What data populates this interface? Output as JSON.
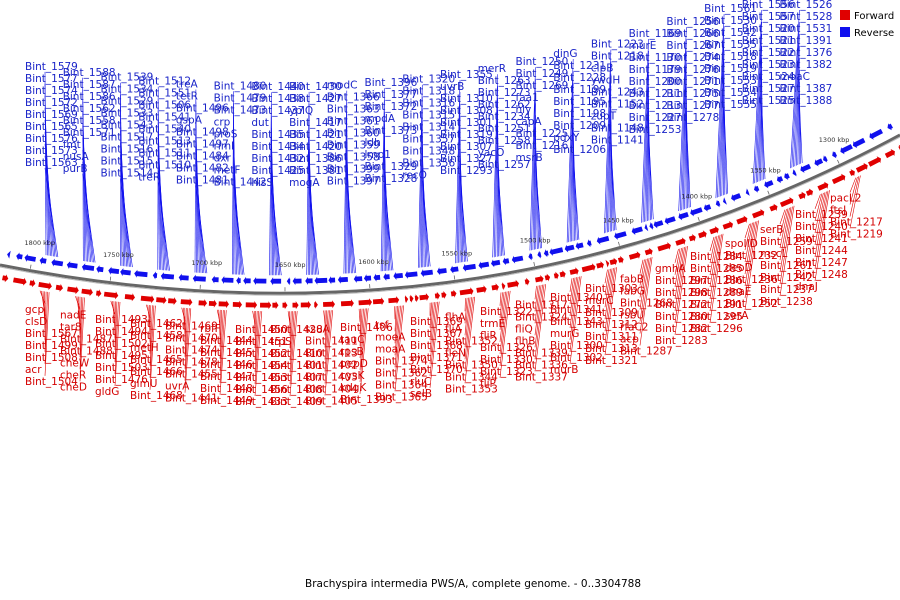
{
  "caption": "Brachyspira intermedia PWS/A, complete genome. - 0..3304788",
  "legend": [
    {
      "label": "Forward",
      "color": "#e00000"
    },
    {
      "label": "Reverse",
      "color": "#1010ee"
    }
  ],
  "ticks": [
    "1800 kbp",
    "1750 kbp",
    "1700 kbp",
    "1650 kbp",
    "1600 kbp",
    "1550 kbp",
    "1500 kbp",
    "1450 kbp",
    "1400 kbp",
    "1350 kbp",
    "1300 kbp"
  ],
  "reverse_labels": [
    "Bint_1579",
    "Bint_1577",
    "Bint_1574",
    "Bint_1572",
    "Bint_1569",
    "Bint_1565",
    "Bint_1576",
    "Bint_1573",
    "Bint_1563",
    "Bint_1588",
    "Bint_1587",
    "Bint_1586",
    "Bint_1562",
    "Bint_1558",
    "Bint_1571",
    "fmt",
    "nusA",
    "purB",
    "Bint_1539",
    "Bint_1534",
    "Bint_1529",
    "Bint_1533",
    "Bint_1543",
    "Bint_1517",
    "Bint_1516",
    "Bint_1515",
    "Bint_1514",
    "Bint_1512",
    "Bint_1551",
    "Bint_1506",
    "Bint_1541",
    "Bint_1540",
    "Bint_1513",
    "Bint_1511",
    "Bint_1510",
    "treR",
    "treA",
    "tetR",
    "Bint_1496",
    "gspA",
    "Bint_1498",
    "Bint_1497",
    "Bint_1484",
    "Bint_1482",
    "Bint_1481",
    "Bint_1480",
    "Bint_1479",
    "Bint_1473",
    "crp",
    "proS",
    "rimI",
    "dxr",
    "metF",
    "Bint_1442",
    "Bint_1440",
    "Bint_1438",
    "Bint_1437",
    "dut",
    "Bint_1435",
    "Bint_1434",
    "Bint_1432",
    "Bint_1425",
    "hisS",
    "Bint_1430",
    "Bint_1427",
    "yplQ",
    "Bint_1417",
    "Bint_1421",
    "Bint_1420",
    "Bint_1386",
    "Bint_1381",
    "mogA",
    "modC",
    "Bint_1366",
    "Bint_1363",
    "Bint_1361",
    "Bint_1360",
    "Bint_1359",
    "Bint_1358",
    "Bint_1399",
    "Bint_1397",
    "Bint_1396",
    "Bint_1377",
    "Bint_1372",
    "modA",
    "Bint_1373",
    "ldh",
    "lmp1",
    "Bint_1329",
    "Bint_1328",
    "Bint_1320",
    "Bint_1318",
    "Bint_1316",
    "Bint_1315",
    "Bint_1314",
    "Bint_1357",
    "Bint_1348",
    "Bint_1356",
    "recO",
    "Bint_1355",
    "uvrB",
    "Bint_1310",
    "Bint_1308",
    "Bint_1301",
    "Bint_1319",
    "Bint_1307",
    "Bint_1327",
    "Bint_1293",
    "merR",
    "Bint_1263",
    "Bint_1273",
    "Bint_1262",
    "Bint_1234",
    "Bint_1251",
    "Bint_1258",
    "yacO",
    "Bint_1257",
    "Bint_1250",
    "Bint_1249",
    "Bint_1269",
    "faa1",
    "hly",
    "capA",
    "Bint_1225",
    "Bint_1216",
    "msrB",
    "dinG",
    "Bint_1231",
    "Bint_1228",
    "Bint_1199",
    "Bint_1195",
    "Bint_1198",
    "Bint_1209",
    "pdxY",
    "Bint_1206",
    "Bint_1223",
    "Bint_1218",
    "clpB",
    "ywdH",
    "Bint_1243",
    "Bint_1152",
    "zupT",
    "Bint_1148",
    "Bint_1141",
    "Bint_1169",
    "murE",
    "Bint_1170",
    "Bint_1179",
    "Bint_1200",
    "Bint_1211",
    "Bint_1213",
    "Bint_1227",
    "Bint_1253",
    "Bint_1256",
    "Bint_1266",
    "Bint_1267",
    "Bint_1274",
    "Bint_1276",
    "Bint_1271",
    "Bint_1275",
    "Bint_1277",
    "Bint_1278",
    "Bint_1561",
    "Bint_1530",
    "Bint_1542",
    "Bint_1535",
    "Bint_1518",
    "Bint_1519",
    "Bint_1553",
    "Bint_1554",
    "Bint_1555",
    "Bint_1556",
    "Bint_1557",
    "Bint_1520",
    "Bint_1521",
    "Bint_1522",
    "Bint_1523",
    "Bint_1524",
    "Bint_1527",
    "Bint_1525",
    "Bint_1526",
    "Bint_1528",
    "Bint_1531",
    "Bint_1391",
    "Bint_1376",
    "Bint_1382",
    "moaC",
    "Bint_1387",
    "Bint_1388"
  ],
  "forward_labels": [
    "gcp",
    "clsD",
    "Bint_1567",
    "Bint_1499",
    "Bint_1508",
    "acr",
    "Bint_1504",
    "nadE",
    "tar8",
    "Bint_1487",
    "Bint_1488",
    "cheW",
    "cheR",
    "cheD",
    "Bint_1493",
    "Bint_1494",
    "Bint_1502",
    "Bint_1495",
    "Bint_1503",
    "Bint_1476",
    "gldG",
    "Bint_1462",
    "Bint_1458",
    "metH",
    "Bint_1465",
    "Bint_1466",
    "glmU",
    "Bint_1468",
    "Bint_1469",
    "Bint_1470",
    "Bint_1474",
    "Bint_1478",
    "Bint_1455",
    "uvrA",
    "Bint_1441",
    "rbfF",
    "Bint_1444",
    "Bint_1445",
    "Bint_1446",
    "Bint_1447",
    "Bint_1448",
    "Bint_1449",
    "Bint_1450",
    "Bint_1451",
    "Bint_1452",
    "Bint_1454",
    "Bint_1453",
    "Bint_1456",
    "Bint_1433",
    "Bint_1428",
    "trpS",
    "Bint_1410",
    "Bint_1401",
    "Bint_1407",
    "Bint_1408",
    "Bint_1409",
    "ssuA",
    "Bint_1411",
    "Bint_1413",
    "Bint_1402",
    "Bint_1403",
    "Bint_1404",
    "Bint_1405",
    "Bint_1406",
    "tauC",
    "rpsB",
    "pepD",
    "cysK",
    "kdgK",
    "Bint_1393",
    "tsf",
    "moeA",
    "moaA",
    "Bint_1374",
    "Bint_1362",
    "Bint_1364",
    "Bint_1365",
    "Bint_1369",
    "Bint_1367",
    "Bint_1368",
    "Bint_1371",
    "Bint_1370",
    "rluC",
    "selB",
    "flhA",
    "fliA",
    "Bint_1352",
    "fleN",
    "Bint_1350",
    "Bint_1344",
    "Bint_1353",
    "Bint_1322",
    "trmE",
    "fliR",
    "Bint_1326",
    "Bint_1330",
    "Bint_1323",
    "fliP",
    "Bint_1317",
    "Bint_1324",
    "fliQ",
    "flhB",
    "Bint_1339",
    "Bint_1336",
    "Bint_1337",
    "Bint_1340",
    "Bint_1341",
    "Bint_1343",
    "murG",
    "Bint_1300",
    "Bint_1302",
    "murB",
    "Bint_1303",
    "murC",
    "Bint_1309",
    "Bint_1312",
    "Bint_1311",
    "Bint_1313",
    "Bint_1321",
    "fabB",
    "fabG",
    "Bint_1268",
    "rsbU",
    "rfaC2",
    "acp",
    "Bint_1287",
    "gmhA",
    "Bint_1297",
    "Bint_1298",
    "Bint_1272",
    "Bint_1280",
    "Bint_1282",
    "Bint_1283",
    "Bint_1284",
    "Bint_1285",
    "Bint_1286",
    "Bint_1289",
    "Bint_1291",
    "Bint_1295",
    "Bint_1296",
    "spoIID",
    "Bint_1232",
    "deoD",
    "Bint_1236",
    "dnaE",
    "Bint_1252",
    "serA",
    "serB",
    "Bint_1259",
    "mscL",
    "Bint_1261",
    "Bint_1242",
    "Bint_1237",
    "Bint_1238",
    "Bint_1239",
    "Bint_1240",
    "Bint_1241",
    "Bint_1244",
    "Bint_1247",
    "Bint_1248",
    "dnaJ",
    "pacL2",
    "ftsJ",
    "Bint_1217",
    "Bint_1219"
  ]
}
